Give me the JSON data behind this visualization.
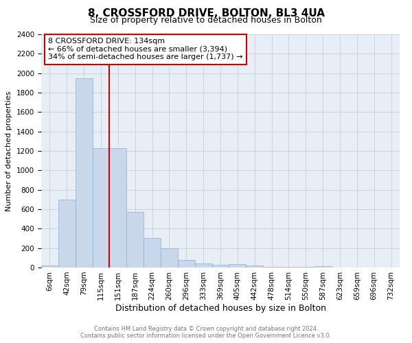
{
  "title": "8, CROSSFORD DRIVE, BOLTON, BL3 4UA",
  "subtitle": "Size of property relative to detached houses in Bolton",
  "xlabel": "Distribution of detached houses by size in Bolton",
  "ylabel": "Number of detached properties",
  "footer_line1": "Contains HM Land Registry data © Crown copyright and database right 2024.",
  "footer_line2": "Contains public sector information licensed under the Open Government Licence v3.0.",
  "bin_labels": [
    "6sqm",
    "42sqm",
    "79sqm",
    "115sqm",
    "151sqm",
    "187sqm",
    "224sqm",
    "260sqm",
    "296sqm",
    "333sqm",
    "369sqm",
    "405sqm",
    "442sqm",
    "478sqm",
    "514sqm",
    "550sqm",
    "587sqm",
    "623sqm",
    "659sqm",
    "696sqm",
    "732sqm"
  ],
  "bar_values": [
    20,
    700,
    1950,
    1230,
    1230,
    575,
    305,
    200,
    80,
    45,
    30,
    35,
    20,
    5,
    5,
    5,
    15,
    2,
    2,
    2,
    2
  ],
  "bar_color": "#c8d8ea",
  "bar_edge_color": "#8ab0cc",
  "annotation_text_line1": "8 CROSSFORD DRIVE: 134sqm",
  "annotation_text_line2": "← 66% of detached houses are smaller (3,394)",
  "annotation_text_line3": "34% of semi-detached houses are larger (1,737) →",
  "annotation_box_color": "#cc0000",
  "ylim": [
    0,
    2400
  ],
  "yticks": [
    0,
    200,
    400,
    600,
    800,
    1000,
    1200,
    1400,
    1600,
    1800,
    2000,
    2200,
    2400
  ],
  "grid_color": "#c8d4e0",
  "background_color": "#e8eef5",
  "title_fontsize": 11,
  "subtitle_fontsize": 9,
  "xlabel_fontsize": 9,
  "ylabel_fontsize": 8,
  "tick_fontsize": 7.5,
  "footer_fontsize": 6,
  "annotation_fontsize": 8
}
